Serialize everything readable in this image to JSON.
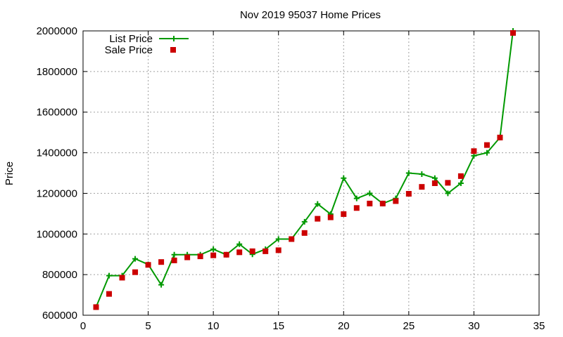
{
  "chart_data": {
    "type": "line",
    "title": "Nov 2019 95037 Home Prices",
    "xlabel": "",
    "ylabel": "Price",
    "xlim": [
      0,
      35
    ],
    "ylim": [
      600000,
      2000000
    ],
    "xticks": [
      0,
      5,
      10,
      15,
      20,
      25,
      30,
      35
    ],
    "yticks": [
      600000,
      800000,
      1000000,
      1200000,
      1400000,
      1600000,
      1800000,
      2000000
    ],
    "grid": true,
    "legend_position": "top-left",
    "series": [
      {
        "name": "List Price",
        "style": "line+cross",
        "color": "#009900",
        "x": [
          1,
          2,
          3,
          4,
          5,
          6,
          7,
          8,
          9,
          10,
          11,
          12,
          13,
          14,
          15,
          16,
          17,
          18,
          19,
          20,
          21,
          22,
          23,
          24,
          25,
          26,
          27,
          28,
          29,
          30,
          31,
          32,
          33
        ],
        "values": [
          640000,
          795000,
          795000,
          878000,
          850000,
          750000,
          898000,
          898000,
          898000,
          925000,
          898000,
          950000,
          900000,
          925000,
          975000,
          975000,
          1060000,
          1148000,
          1098000,
          1275000,
          1175000,
          1200000,
          1150000,
          1175000,
          1300000,
          1295000,
          1275000,
          1200000,
          1250000,
          1385000,
          1400000,
          1475000,
          2000000
        ]
      },
      {
        "name": "Sale Price",
        "style": "square",
        "color": "#cc0000",
        "x": [
          1,
          2,
          3,
          4,
          5,
          6,
          7,
          8,
          9,
          10,
          11,
          12,
          13,
          14,
          15,
          16,
          17,
          18,
          19,
          20,
          21,
          22,
          23,
          24,
          25,
          26,
          27,
          28,
          29,
          30,
          31,
          32,
          33
        ],
        "values": [
          640000,
          705000,
          785000,
          812000,
          848000,
          862000,
          870000,
          885000,
          890000,
          895000,
          898000,
          910000,
          915000,
          915000,
          920000,
          975000,
          1005000,
          1075000,
          1082000,
          1098000,
          1128000,
          1150000,
          1150000,
          1162000,
          1198000,
          1232000,
          1250000,
          1252000,
          1285000,
          1408000,
          1438000,
          1475000,
          1990000
        ]
      }
    ]
  }
}
